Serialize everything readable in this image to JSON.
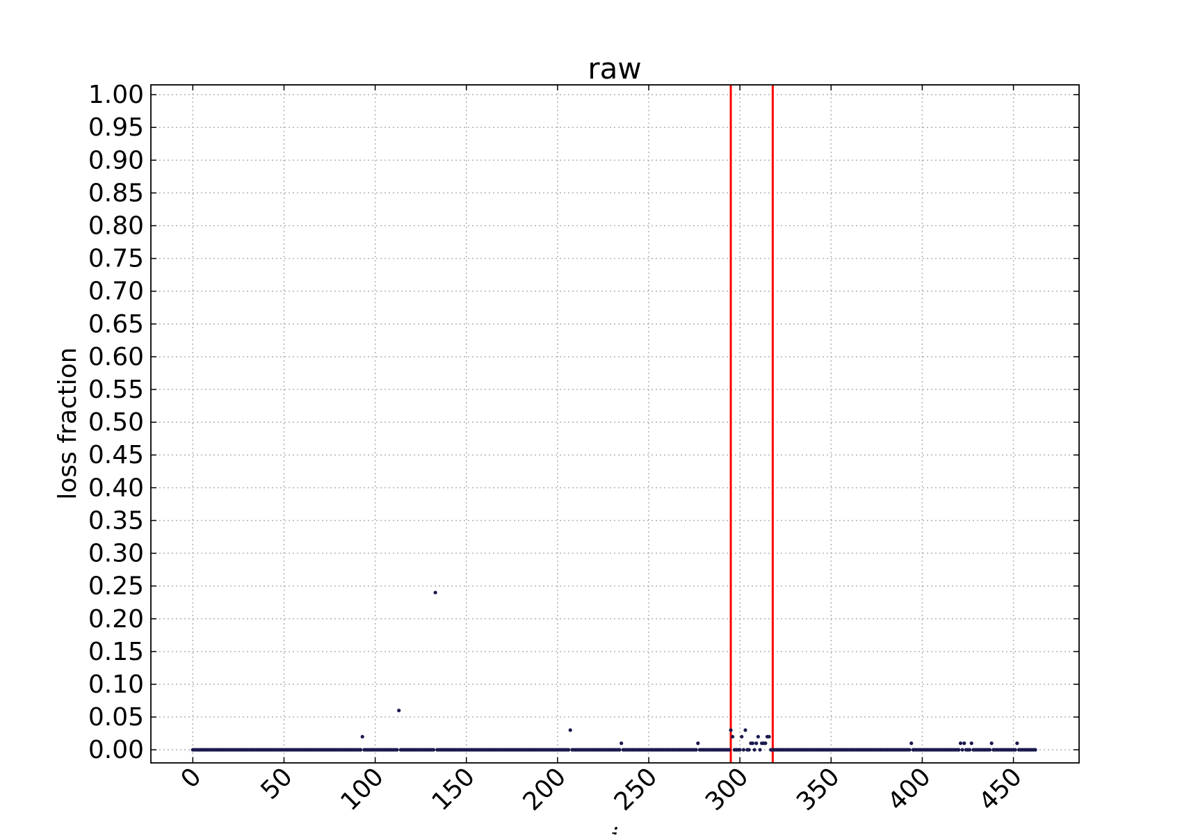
{
  "chart_data": {
    "type": "scatter",
    "title": "raw",
    "xlabel": "i",
    "ylabel": "loss fraction",
    "xlim": [
      -23,
      486
    ],
    "ylim": [
      -0.02,
      1.015
    ],
    "xticks": [
      0,
      50,
      100,
      150,
      200,
      250,
      300,
      350,
      400,
      450
    ],
    "yticks": [
      0.0,
      0.05,
      0.1,
      0.15,
      0.2,
      0.25,
      0.3,
      0.35,
      0.4,
      0.45,
      0.5,
      0.55,
      0.6,
      0.65,
      0.7,
      0.75,
      0.8,
      0.85,
      0.9,
      0.95,
      1.0
    ],
    "grid": true,
    "n_points": 463,
    "baseline_value": 0.0,
    "nonzero_points": [
      {
        "x": 93,
        "y": 0.02
      },
      {
        "x": 113,
        "y": 0.06
      },
      {
        "x": 133,
        "y": 0.24
      },
      {
        "x": 207,
        "y": 0.03
      },
      {
        "x": 235,
        "y": 0.01
      },
      {
        "x": 277,
        "y": 0.01
      },
      {
        "x": 295,
        "y": 0.03
      },
      {
        "x": 296,
        "y": 0.02
      },
      {
        "x": 301,
        "y": 0.02
      },
      {
        "x": 303,
        "y": 0.03
      },
      {
        "x": 306,
        "y": 0.01
      },
      {
        "x": 307,
        "y": 0.01
      },
      {
        "x": 309,
        "y": 0.01
      },
      {
        "x": 310,
        "y": 0.02
      },
      {
        "x": 312,
        "y": 0.01
      },
      {
        "x": 313,
        "y": 0.01
      },
      {
        "x": 314,
        "y": 0.01
      },
      {
        "x": 315,
        "y": 0.02
      },
      {
        "x": 316,
        "y": 0.02
      },
      {
        "x": 394,
        "y": 0.01
      },
      {
        "x": 421,
        "y": 0.01
      },
      {
        "x": 423,
        "y": 0.01
      },
      {
        "x": 427,
        "y": 0.01
      },
      {
        "x": 438,
        "y": 0.01
      },
      {
        "x": 452,
        "y": 0.01
      }
    ],
    "vertical_lines": [
      295,
      318
    ],
    "colors": {
      "marker": "#1a1a4e",
      "vertical_line": "#ff0000",
      "grid": "#b0b0b0"
    }
  }
}
